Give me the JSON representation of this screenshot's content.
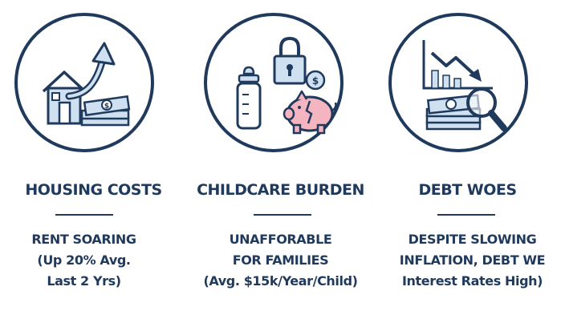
{
  "colors": {
    "navy": "#1f3a5c",
    "light_blue": "#cfe0f1",
    "pink": "#f5b5c0",
    "background": "#ffffff"
  },
  "panels": [
    {
      "icon": "house-rising-arrow-money-icon",
      "heading": "HOUSING COSTS",
      "lines": [
        "RENT SOARING",
        "(Up 20% Avg.",
        "Last 2 Yrs)"
      ]
    },
    {
      "icon": "bottle-lock-piggybank-icon",
      "heading": "CHILDCARE BURDEN",
      "lines": [
        "UNAFFORABLE",
        "FOR FAMILIES",
        "(Avg. $15k/Year/Child)"
      ]
    },
    {
      "icon": "falling-chart-money-magnifier-icon",
      "heading": "DEBT WOES",
      "lines": [
        "DESPITE SLOWING",
        "INFLATION, DEBT WE",
        "Interest Rates High)"
      ]
    }
  ]
}
